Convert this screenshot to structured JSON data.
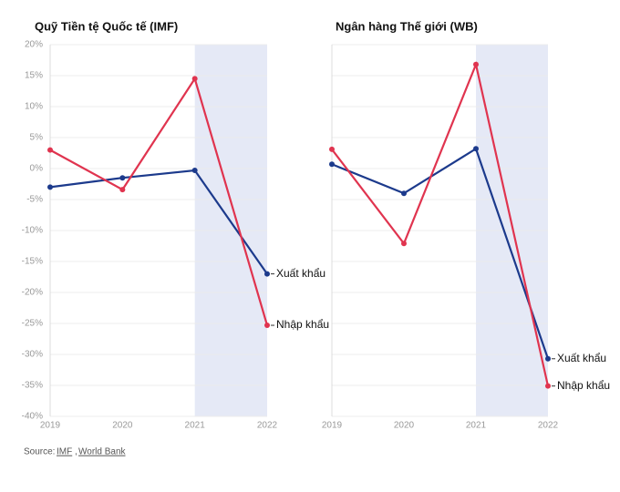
{
  "chart_data": [
    {
      "type": "line",
      "title": "Quỹ Tiền tệ Quốc tế (IMF)",
      "categories": [
        "2019",
        "2020",
        "2021",
        "2022"
      ],
      "series": [
        {
          "name": "Xuất khẩu",
          "color": "#1c3a8c",
          "values": [
            -3,
            -1.5,
            -0.3,
            -17
          ]
        },
        {
          "name": "Nhập khẩu",
          "color": "#e0344f",
          "values": [
            3,
            -3.4,
            14.5,
            -25.3
          ]
        }
      ],
      "ylim": [
        -40,
        20
      ],
      "yticks": [
        {
          "value": -40,
          "label": "-40%"
        },
        {
          "value": -35,
          "label": "-35%"
        },
        {
          "value": -30,
          "label": "-30%"
        },
        {
          "value": -25,
          "label": "-25%"
        },
        {
          "value": -20,
          "label": "-20%"
        },
        {
          "value": -15,
          "label": "-15%"
        },
        {
          "value": -10,
          "label": "-10%"
        },
        {
          "value": -5,
          "label": "-5%"
        },
        {
          "value": 0,
          "label": "0%"
        },
        {
          "value": 5,
          "label": "5%"
        },
        {
          "value": 10,
          "label": "10%"
        },
        {
          "value": 15,
          "label": "15%"
        },
        {
          "value": 20,
          "label": "20%"
        }
      ],
      "grid": true,
      "show_tick_labels": true,
      "highlight": [
        "2021",
        "2022"
      ],
      "highlight_color": "#e5e9f6"
    },
    {
      "type": "line",
      "title": "Ngân hàng Thế giới (WB)",
      "categories": [
        "2019",
        "2020",
        "2021",
        "2022"
      ],
      "series": [
        {
          "name": "Xuất khẩu",
          "color": "#1c3a8c",
          "values": [
            0.7,
            -4,
            3.2,
            -30.7
          ]
        },
        {
          "name": "Nhập khẩu",
          "color": "#e0344f",
          "values": [
            3.1,
            -12.1,
            16.8,
            -35.1
          ]
        }
      ],
      "ylim": [
        -40,
        20
      ],
      "yticks": [
        -40,
        -35,
        -30,
        -25,
        -20,
        -15,
        -10,
        -5,
        0,
        5,
        10,
        15,
        20
      ],
      "grid": true,
      "show_tick_labels": false,
      "highlight": [
        "2021",
        "2022"
      ],
      "highlight_color": "#e5e9f6"
    }
  ],
  "source": {
    "prefix": "Source:",
    "links": [
      "IMF",
      "World Bank"
    ]
  }
}
